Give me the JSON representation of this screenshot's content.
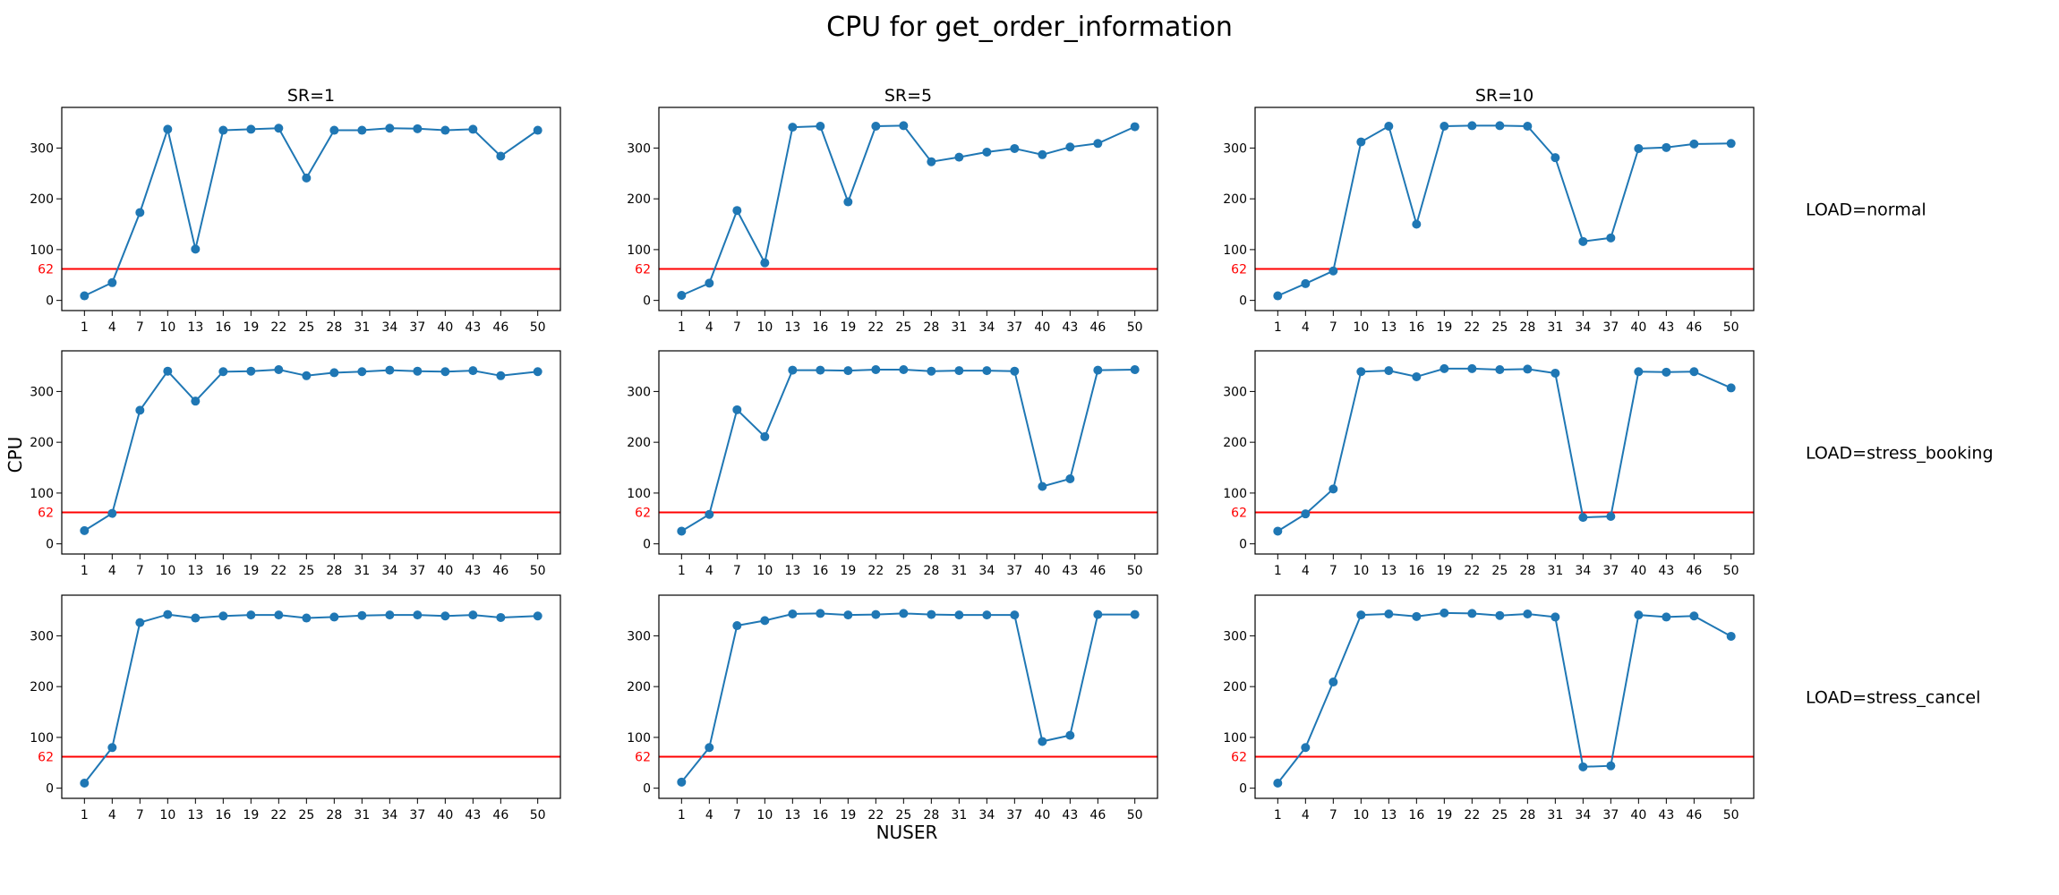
{
  "chart_data": {
    "type": "line",
    "title": "CPU for get_order_information",
    "xlabel": "NUSER",
    "ylabel": "CPU",
    "x": [
      1,
      4,
      7,
      10,
      13,
      16,
      19,
      22,
      25,
      28,
      31,
      34,
      37,
      40,
      43,
      46,
      50
    ],
    "yticks": [
      0,
      100,
      200,
      300
    ],
    "ylim": [
      -20,
      380
    ],
    "threshold": {
      "value": 62,
      "label": "62",
      "color": "#ff0000"
    },
    "series_color": "#1f77b4",
    "columns": [
      "SR=1",
      "SR=5",
      "SR=10"
    ],
    "rows": [
      "LOAD=normal",
      "LOAD=stress_booking",
      "LOAD=stress_cancel"
    ],
    "panels": [
      [
        [
          9,
          35,
          173,
          337,
          101,
          335,
          337,
          339,
          241,
          335,
          335,
          339,
          338,
          335,
          337,
          284,
          335
        ],
        [
          10,
          34,
          177,
          74,
          341,
          343,
          194,
          343,
          344,
          273,
          282,
          292,
          299,
          287,
          302,
          309,
          342
        ],
        [
          9,
          33,
          58,
          312,
          343,
          150,
          343,
          344,
          344,
          343,
          281,
          116,
          123,
          299,
          301,
          308,
          309
        ]
      ],
      [
        [
          26,
          60,
          263,
          340,
          281,
          339,
          340,
          343,
          331,
          337,
          339,
          342,
          340,
          339,
          341,
          331,
          339
        ],
        [
          25,
          58,
          264,
          211,
          342,
          342,
          341,
          343,
          343,
          340,
          341,
          341,
          340,
          113,
          128,
          342,
          343
        ],
        [
          25,
          59,
          108,
          339,
          341,
          329,
          345,
          345,
          343,
          344,
          336,
          52,
          54,
          339,
          338,
          339,
          307
        ]
      ],
      [
        [
          10,
          80,
          326,
          342,
          335,
          339,
          341,
          341,
          335,
          337,
          340,
          341,
          341,
          339,
          341,
          336,
          339
        ],
        [
          12,
          80,
          320,
          330,
          343,
          344,
          341,
          342,
          344,
          342,
          341,
          341,
          341,
          92,
          104,
          342,
          342
        ],
        [
          10,
          80,
          209,
          341,
          343,
          338,
          345,
          344,
          340,
          343,
          337,
          42,
          44,
          341,
          337,
          339,
          299
        ]
      ]
    ]
  }
}
